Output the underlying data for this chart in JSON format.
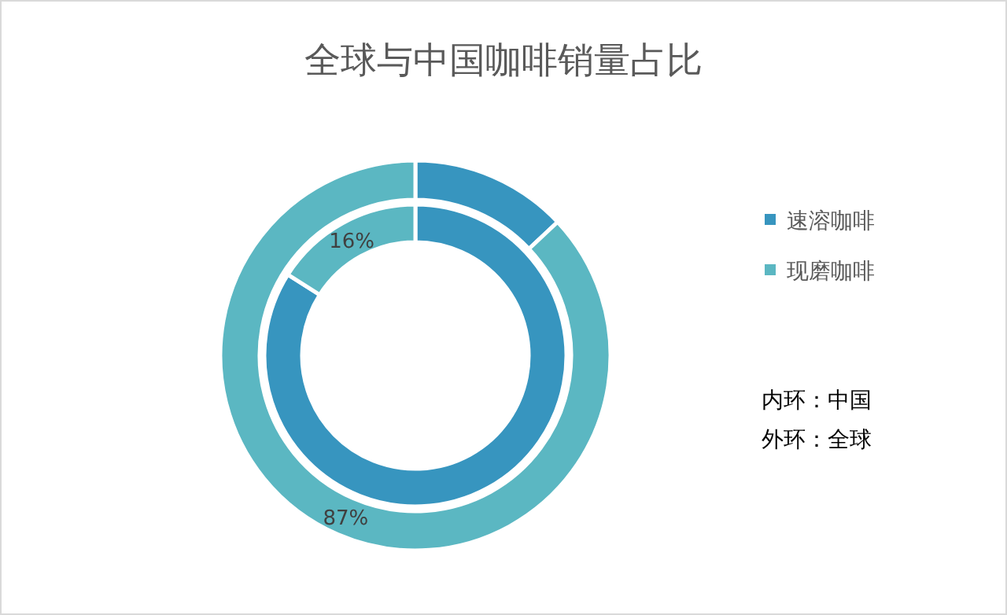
{
  "chart_data": {
    "type": "donut",
    "title": "全球与中国咖啡销量占比",
    "categories": [
      "速溶咖啡",
      "现磨咖啡"
    ],
    "colors": [
      "#3795bf",
      "#5bb7c2"
    ],
    "series": [
      {
        "values": [
          84,
          16
        ],
        "value_labels": [
          null,
          "16%"
        ]
      },
      {
        "values": [
          13,
          87
        ],
        "value_labels": [
          null,
          "87%"
        ]
      }
    ],
    "legend": "right",
    "annotations": [
      "内环：中国",
      "外环：全球"
    ]
  }
}
